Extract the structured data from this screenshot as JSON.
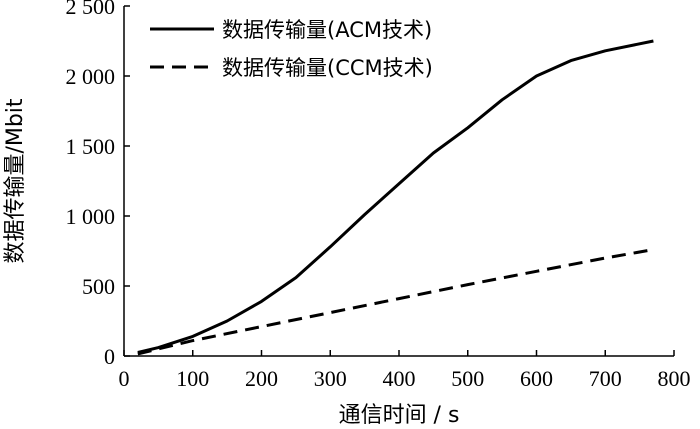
{
  "chart_data": {
    "type": "line",
    "title": "",
    "xlabel": "通信时间 / s",
    "ylabel": "数据传输量/Mbit",
    "xlim": [
      0,
      800
    ],
    "ylim": [
      0,
      2500
    ],
    "x_ticks": [
      0,
      100,
      200,
      300,
      400,
      500,
      600,
      700,
      800
    ],
    "x_tick_labels": [
      "0",
      "100",
      "200",
      "300",
      "400",
      "500",
      "600",
      "700",
      "800"
    ],
    "y_ticks": [
      0,
      500,
      1000,
      1500,
      2000,
      2500
    ],
    "y_tick_labels": [
      "0",
      "500",
      "1 000",
      "1 500",
      "2 000",
      "2 500"
    ],
    "grid": false,
    "legend_position": "top-left",
    "series": [
      {
        "name": "数据传输量(ACM技术)",
        "style": "solid",
        "color": "#000000",
        "x": [
          20,
          50,
          100,
          150,
          200,
          250,
          300,
          350,
          400,
          450,
          500,
          550,
          600,
          650,
          700,
          770
        ],
        "y": [
          25,
          60,
          140,
          250,
          390,
          560,
          780,
          1010,
          1230,
          1450,
          1630,
          1830,
          2000,
          2110,
          2180,
          2250
        ]
      },
      {
        "name": "数据传输量(CCM技术)",
        "style": "dashed",
        "color": "#000000",
        "x": [
          20,
          100,
          200,
          300,
          400,
          500,
          600,
          700,
          770
        ],
        "y": [
          15,
          110,
          210,
          310,
          410,
          510,
          605,
          700,
          760
        ]
      }
    ]
  }
}
